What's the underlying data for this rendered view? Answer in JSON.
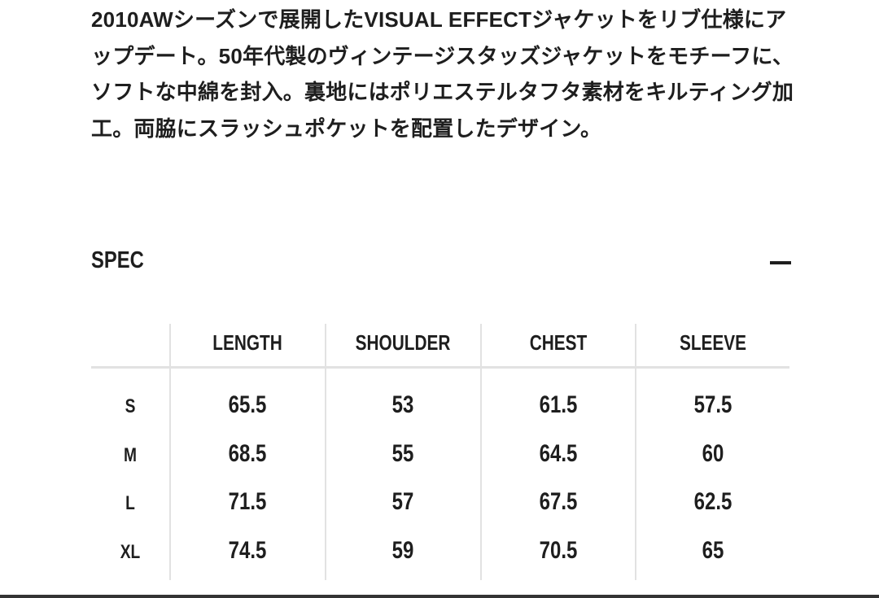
{
  "description": "2010AWシーズンで展開したVISUAL EFFECTジャケットをリブ仕様にアップデート。50年代製のヴィンテージスタッズジャケットをモチーフに、ソフトな中綿を封入。裏地にはポリエステルタフタ素材をキルティング加工。両脇にスラッシュポケットを配置したデザイン。",
  "spec": {
    "title": "SPEC",
    "toggle_icon": "minus-icon",
    "columns": [
      "LENGTH",
      "SHOULDER",
      "CHEST",
      "SLEEVE"
    ],
    "rows": [
      {
        "size": "S",
        "values": [
          "65.5",
          "53",
          "61.5",
          "57.5"
        ]
      },
      {
        "size": "M",
        "values": [
          "68.5",
          "55",
          "64.5",
          "60"
        ]
      },
      {
        "size": "L",
        "values": [
          "71.5",
          "57",
          "67.5",
          "62.5"
        ]
      },
      {
        "size": "XL",
        "values": [
          "74.5",
          "59",
          "70.5",
          "65"
        ]
      }
    ]
  }
}
